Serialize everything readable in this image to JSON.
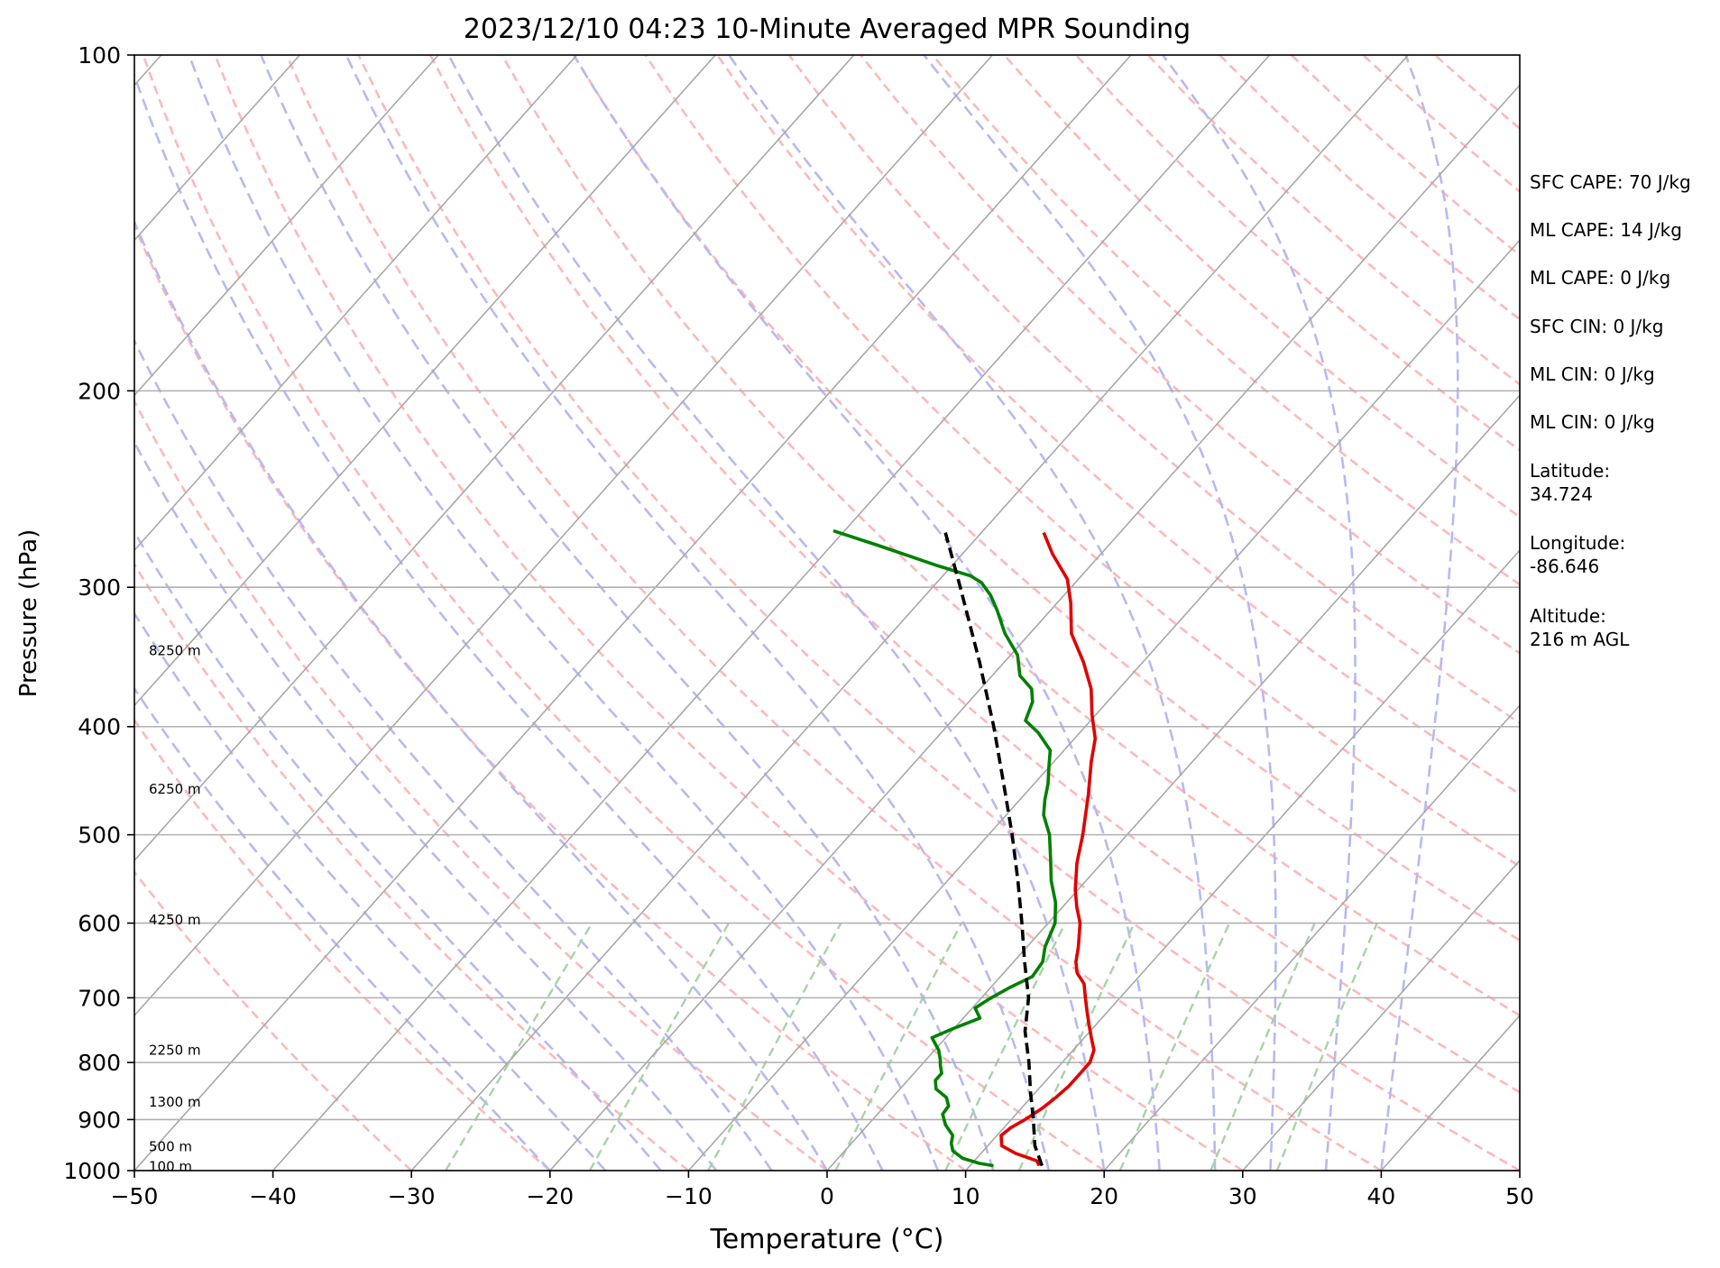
{
  "chart_data": {
    "type": "skew-t",
    "title": "2023/12/10 04:23 10-Minute Averaged MPR Sounding",
    "xlabel": "Temperature (°C)",
    "ylabel": "Pressure (hPa)",
    "xlim": [
      -50,
      50
    ],
    "ylim": [
      1000,
      100
    ],
    "y_scale": "log",
    "x_ticks": [
      -50,
      -40,
      -30,
      -20,
      -10,
      0,
      10,
      20,
      30,
      40,
      50
    ],
    "x_tick_labels": [
      "−50",
      "−40",
      "−30",
      "−20",
      "−10",
      "0",
      "10",
      "20",
      "30",
      "40",
      "50"
    ],
    "y_ticks": [
      1000,
      900,
      800,
      700,
      600,
      500,
      400,
      300,
      200,
      100
    ],
    "y_tick_labels": [
      "1000",
      "900",
      "800",
      "700",
      "600",
      "500",
      "400",
      "300",
      "200",
      "100"
    ],
    "grid": true,
    "height_labels": [
      {
        "text": "8250 m",
        "p": 342
      },
      {
        "text": "6250 m",
        "p": 455
      },
      {
        "text": "4250 m",
        "p": 596
      },
      {
        "text": "2250 m",
        "p": 780
      },
      {
        "text": "1300 m",
        "p": 868
      },
      {
        "text": "500 m",
        "p": 952
      },
      {
        "text": "100 m",
        "p": 992
      }
    ],
    "series": [
      {
        "color": "#e00000",
        "points": [
          [
            990,
            15
          ],
          [
            980,
            14.5
          ],
          [
            965,
            12.5
          ],
          [
            950,
            11
          ],
          [
            930,
            10.3
          ],
          [
            915,
            10.5
          ],
          [
            900,
            11
          ],
          [
            880,
            11.5
          ],
          [
            860,
            11.8
          ],
          [
            840,
            12
          ],
          [
            820,
            12
          ],
          [
            800,
            12
          ],
          [
            780,
            11.5
          ],
          [
            760,
            10.5
          ],
          [
            740,
            9.5
          ],
          [
            720,
            8.5
          ],
          [
            700,
            7.5
          ],
          [
            680,
            6.5
          ],
          [
            665,
            5.3
          ],
          [
            650,
            4.5
          ],
          [
            630,
            3.7
          ],
          [
            600,
            2.3
          ],
          [
            580,
            1.0
          ],
          [
            560,
            -0.2
          ],
          [
            530,
            -1.8
          ],
          [
            500,
            -3.2
          ],
          [
            460,
            -5.4
          ],
          [
            430,
            -7.3
          ],
          [
            410,
            -8.5
          ],
          [
            390,
            -10.3
          ],
          [
            370,
            -12.0
          ],
          [
            350,
            -14.3
          ],
          [
            330,
            -17.0
          ],
          [
            310,
            -19.0
          ],
          [
            295,
            -20.8
          ],
          [
            280,
            -23.5
          ],
          [
            268,
            -25.5
          ]
        ]
      },
      {
        "color": "#008000",
        "points": [
          [
            990,
            11.7
          ],
          [
            985,
            10.5
          ],
          [
            975,
            9
          ],
          [
            960,
            7.8
          ],
          [
            945,
            7.2
          ],
          [
            930,
            6.8
          ],
          [
            910,
            5.6
          ],
          [
            890,
            4.7
          ],
          [
            875,
            4.6
          ],
          [
            860,
            3.9
          ],
          [
            845,
            2.6
          ],
          [
            830,
            2.0
          ],
          [
            818,
            2.0
          ],
          [
            805,
            1.4
          ],
          [
            795,
            1.0
          ],
          [
            780,
            0.3
          ],
          [
            760,
            -1.0
          ],
          [
            745,
            0.0
          ],
          [
            730,
            1.2
          ],
          [
            715,
            0.2
          ],
          [
            700,
            0.7
          ],
          [
            685,
            1.4
          ],
          [
            670,
            2.3
          ],
          [
            650,
            2.1
          ],
          [
            630,
            1.3
          ],
          [
            600,
            0.5
          ],
          [
            575,
            -0.8
          ],
          [
            550,
            -2.5
          ],
          [
            525,
            -4.0
          ],
          [
            500,
            -5.6
          ],
          [
            480,
            -7.3
          ],
          [
            465,
            -8.2
          ],
          [
            450,
            -9.0
          ],
          [
            435,
            -10.0
          ],
          [
            420,
            -11.0
          ],
          [
            405,
            -13.0
          ],
          [
            395,
            -14.7
          ],
          [
            380,
            -15.4
          ],
          [
            370,
            -16.3
          ],
          [
            360,
            -18.0
          ],
          [
            345,
            -19.5
          ],
          [
            330,
            -21.8
          ],
          [
            315,
            -23.8
          ],
          [
            305,
            -25.3
          ],
          [
            297,
            -26.8
          ],
          [
            293,
            -28.0
          ],
          [
            287,
            -31.0
          ],
          [
            275,
            -36.7
          ],
          [
            267,
            -40.8
          ]
        ]
      },
      {
        "color": "#000000",
        "dashed": true,
        "points": [
          [
            990,
            15.2
          ],
          [
            950,
            13.4
          ],
          [
            900,
            11.6
          ],
          [
            850,
            9.6
          ],
          [
            800,
            7.6
          ],
          [
            750,
            5.3
          ],
          [
            700,
            3.4
          ],
          [
            650,
            0.8
          ],
          [
            600,
            -1.9
          ],
          [
            550,
            -4.9
          ],
          [
            500,
            -8.3
          ],
          [
            450,
            -12.2
          ],
          [
            400,
            -16.6
          ],
          [
            350,
            -21.8
          ],
          [
            300,
            -28.0
          ],
          [
            268,
            -32.6
          ]
        ]
      }
    ],
    "annotations": [
      "SFC CAPE: 70 J/kg",
      "ML CAPE: 14 J/kg",
      "ML CAPE: 0 J/kg",
      "SFC CIN: 0 J/kg",
      "ML CIN: 0 J/kg",
      "ML CIN: 0 J/kg",
      "Latitude:\n34.724",
      "Longitude:\n-86.646",
      "Altitude:\n216 m AGL"
    ],
    "background_lines": {
      "isotherms_color": "#a8a8a8",
      "dry_adiabats_color": "#ffb8b8",
      "moist_adiabats_color": "#b8b8f4",
      "mixing_ratio_color": "#a6d4a6"
    }
  }
}
